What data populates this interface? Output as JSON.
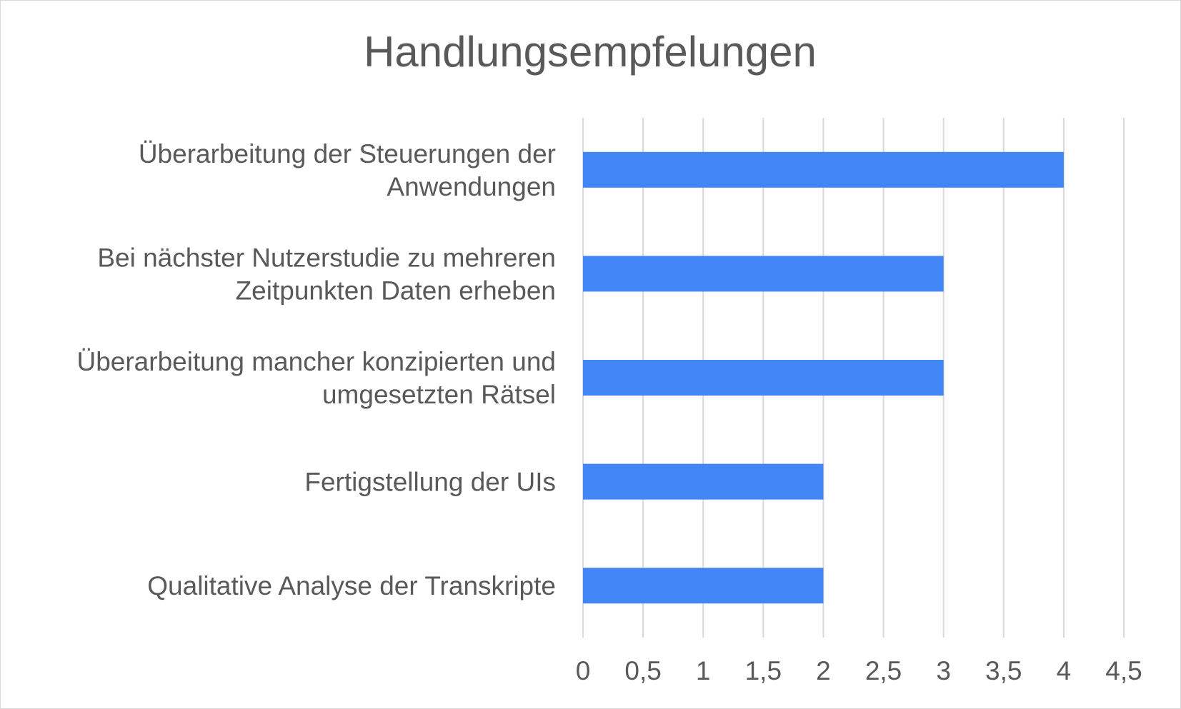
{
  "chart_data": {
    "type": "bar",
    "orientation": "horizontal",
    "title": "Handlungsempfelungen",
    "xlabel": "",
    "ylabel": "",
    "categories": [
      [
        "Überarbeitung der Steuerungen der",
        "Anwendungen"
      ],
      [
        "Bei nächster Nutzerstudie zu mehreren",
        "Zeitpunkten Daten erheben"
      ],
      [
        "Überarbeitung mancher konzipierten und",
        "umgesetzten Rätsel"
      ],
      [
        "Fertigstellung der UIs"
      ],
      [
        "Qualitative Analyse der Transkripte"
      ]
    ],
    "values": [
      4,
      3,
      3,
      2,
      2
    ],
    "xlim": [
      0,
      4.5
    ],
    "ticks": [
      0,
      0.5,
      1,
      1.5,
      2,
      2.5,
      3,
      3.5,
      4,
      4.5
    ],
    "tick_labels": [
      "0",
      "0,5",
      "1",
      "1,5",
      "2",
      "2,5",
      "3",
      "3,5",
      "4",
      "4,5"
    ],
    "grid": true,
    "legend": false,
    "bar_color": "#4285f4",
    "text_color": "#595959",
    "grid_color": "#d9d9d9"
  }
}
